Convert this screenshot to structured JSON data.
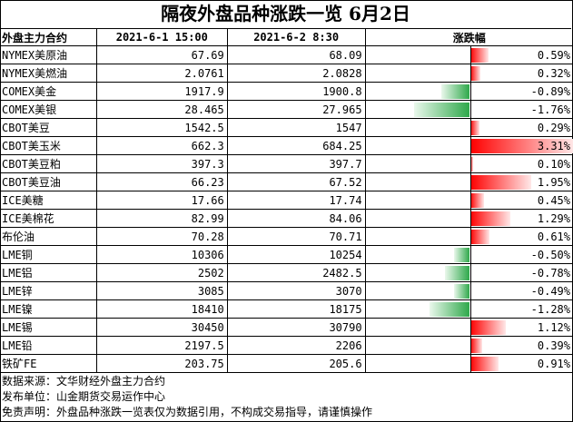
{
  "title": "隔夜外盘品种涨跌一览 6月2日",
  "headers": {
    "name": "外盘主力合约",
    "price1": "2021-6-1 15:00",
    "price2": "2021-6-2 8:30",
    "change": "涨跌幅"
  },
  "rows": [
    {
      "name": "NYMEX美原油",
      "p1": "67.69",
      "p2": "68.09",
      "pct": "0.59%",
      "v": 0.59
    },
    {
      "name": "NYMEX美燃油",
      "p1": "2.0761",
      "p2": "2.0828",
      "pct": "0.32%",
      "v": 0.32
    },
    {
      "name": "COMEX美金",
      "p1": "1917.9",
      "p2": "1900.8",
      "pct": "-0.89%",
      "v": -0.89
    },
    {
      "name": "COMEX美银",
      "p1": "28.465",
      "p2": "27.965",
      "pct": "-1.76%",
      "v": -1.76
    },
    {
      "name": "CBOT美豆",
      "p1": "1542.5",
      "p2": "1547",
      "pct": "0.29%",
      "v": 0.29
    },
    {
      "name": "CBOT美玉米",
      "p1": "662.3",
      "p2": "684.25",
      "pct": "3.31%",
      "v": 3.31
    },
    {
      "name": "CBOT美豆粕",
      "p1": "397.3",
      "p2": "397.7",
      "pct": "0.10%",
      "v": 0.1
    },
    {
      "name": "CBOT美豆油",
      "p1": "66.23",
      "p2": "67.52",
      "pct": "1.95%",
      "v": 1.95
    },
    {
      "name": "ICE美糖",
      "p1": "17.66",
      "p2": "17.74",
      "pct": "0.45%",
      "v": 0.45
    },
    {
      "name": "ICE美棉花",
      "p1": "82.99",
      "p2": "84.06",
      "pct": "1.29%",
      "v": 1.29
    },
    {
      "name": "布伦油",
      "p1": "70.28",
      "p2": "70.71",
      "pct": "0.61%",
      "v": 0.61
    },
    {
      "name": "LME铜",
      "p1": "10306",
      "p2": "10254",
      "pct": "-0.50%",
      "v": -0.5
    },
    {
      "name": "LME铝",
      "p1": "2502",
      "p2": "2482.5",
      "pct": "-0.78%",
      "v": -0.78
    },
    {
      "name": "LME锌",
      "p1": "3085",
      "p2": "3070",
      "pct": "-0.49%",
      "v": -0.49
    },
    {
      "name": "LME镍",
      "p1": "18410",
      "p2": "18175",
      "pct": "-1.28%",
      "v": -1.28
    },
    {
      "name": "LME锡",
      "p1": "30450",
      "p2": "30790",
      "pct": "1.12%",
      "v": 1.12
    },
    {
      "name": "LME铅",
      "p1": "2197.5",
      "p2": "2206",
      "pct": "0.39%",
      "v": 0.39
    },
    {
      "name": "铁矿FE",
      "p1": "203.75",
      "p2": "205.6",
      "pct": "0.91%",
      "v": 0.91
    }
  ],
  "notes": [
    "数据来源：文华财经外盘主力合约",
    "发布单位：山金期货交易运作中心",
    "免责声明：外盘品种涨跌一览表仅为数据引用，不构成交易指导，请谨慎操作"
  ],
  "colors": {
    "up": "#ff0000",
    "down": "#2ea84a"
  }
}
